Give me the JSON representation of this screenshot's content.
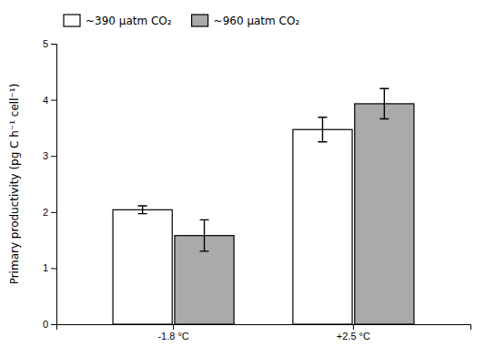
{
  "chart_data": {
    "type": "bar",
    "categories": [
      "-1.8 °C",
      "+2.5 °C"
    ],
    "series": [
      {
        "name": "~390 μatm CO₂",
        "color": "white",
        "values": [
          2.04,
          3.47
        ],
        "errors": [
          0.07,
          0.22
        ]
      },
      {
        "name": "~960 μatm CO₂",
        "color": "#aaaaaa",
        "values": [
          1.58,
          3.93
        ],
        "errors": [
          0.28,
          0.27
        ]
      }
    ],
    "ylabel": "Primary productivity (pg C h⁻¹ cell⁻¹)",
    "ylim": [
      0,
      5
    ],
    "yticks": [
      0,
      1,
      2,
      3,
      4,
      5
    ],
    "grid": false,
    "legend": "top"
  }
}
